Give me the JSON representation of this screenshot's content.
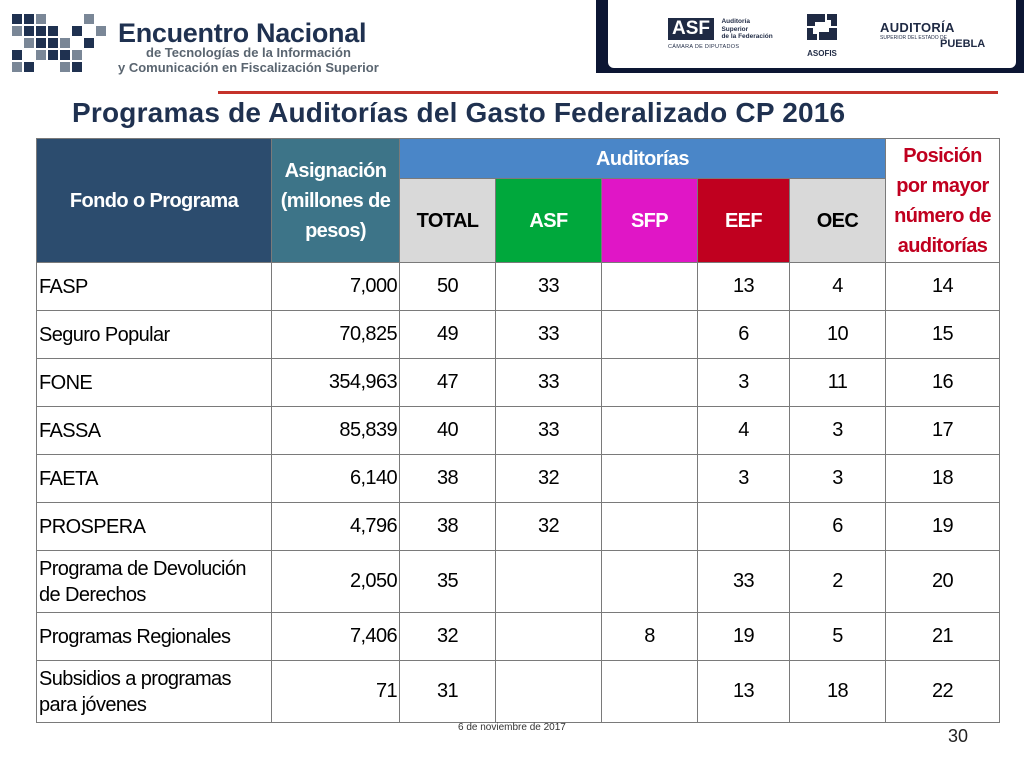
{
  "header": {
    "event_title": "Encuentro Nacional",
    "event_subtitle_1": "de Tecnologías de la Información",
    "event_subtitle_2": "y Comunicación en Fiscalización Superior",
    "asf_logo": {
      "badge": "ASF",
      "line1": "Auditoría",
      "line2": "Superior",
      "line3": "de la Federación",
      "sub": "CÁMARA DE DIPUTADOS"
    },
    "asofis_logo": {
      "label": "ASOFIS"
    },
    "auditoria_logo": {
      "title": "AUDITORÍA",
      "sub": "SUPERIOR DEL ESTADO DE",
      "place": "PUEBLA"
    },
    "bar_color": "#0c1633",
    "rule_color": "#c5322a"
  },
  "slide": {
    "title": "Programas de Auditorías del Gasto Federalizado CP 2016",
    "footer_date": "6 de noviembre de 2017",
    "page_number": "30"
  },
  "table": {
    "headers": {
      "fondo": "Fondo o Programa",
      "asignacion": "Asignación (millones de pesos)",
      "auditorias": "Auditorías",
      "posicion": "Posición por mayor número de auditorías",
      "total": "TOTAL",
      "asf": "ASF",
      "sfp": "SFP",
      "eef": "EEF",
      "oec": "OEC"
    },
    "header_colors": {
      "fondo": "#2c4c6e",
      "asignacion": "#3d7488",
      "auditorias": "#4a86c8",
      "posicion_text": "#c0001f",
      "asf": "#00a83c",
      "sfp": "#e016c6",
      "eef": "#c0001f",
      "total": "#d9d9d9",
      "oec": "#d9d9d9"
    },
    "rows": [
      {
        "name": "FASP",
        "alloc": "7,000",
        "total": "50",
        "asf": "33",
        "sfp": "",
        "eef": "13",
        "oec": "4",
        "pos": "14"
      },
      {
        "name": "Seguro Popular",
        "alloc": "70,825",
        "total": "49",
        "asf": "33",
        "sfp": "",
        "eef": "6",
        "oec": "10",
        "pos": "15"
      },
      {
        "name": "FONE",
        "alloc": "354,963",
        "total": "47",
        "asf": "33",
        "sfp": "",
        "eef": "3",
        "oec": "11",
        "pos": "16"
      },
      {
        "name": "FASSA",
        "alloc": "85,839",
        "total": "40",
        "asf": "33",
        "sfp": "",
        "eef": "4",
        "oec": "3",
        "pos": "17"
      },
      {
        "name": "FAETA",
        "alloc": "6,140",
        "total": "38",
        "asf": "32",
        "sfp": "",
        "eef": "3",
        "oec": "3",
        "pos": "18"
      },
      {
        "name": "PROSPERA",
        "alloc": "4,796",
        "total": "38",
        "asf": "32",
        "sfp": "",
        "eef": "",
        "oec": "6",
        "pos": "19"
      },
      {
        "name": "Programa de Devolución de Derechos",
        "alloc": "2,050",
        "total": "35",
        "asf": "",
        "sfp": "",
        "eef": "33",
        "oec": "2",
        "pos": "20"
      },
      {
        "name": "Programas Regionales",
        "alloc": "7,406",
        "total": "32",
        "asf": "",
        "sfp": "8",
        "eef": "19",
        "oec": "5",
        "pos": "21"
      },
      {
        "name": "Subsidios a programas para jóvenes",
        "alloc": "71",
        "total": "31",
        "asf": "",
        "sfp": "",
        "eef": "13",
        "oec": "18",
        "pos": "22"
      }
    ]
  }
}
